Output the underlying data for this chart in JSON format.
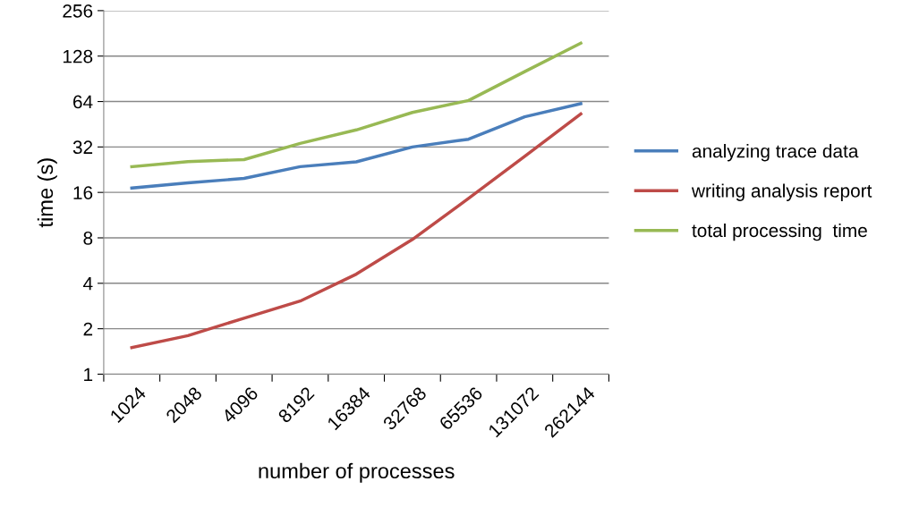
{
  "chart_data": {
    "type": "line",
    "xlabel": "number of processes",
    "ylabel": "time (s)",
    "categories": [
      "1024",
      "2048",
      "4096",
      "8192",
      "16384",
      "32768",
      "65536",
      "131072",
      "262144"
    ],
    "series": [
      {
        "name": "analyzing trace data",
        "color": "#4a7ebb",
        "values": [
          17.1,
          18.5,
          19.8,
          23.7,
          25.5,
          32,
          36,
          50.7,
          62
        ]
      },
      {
        "name": "writing analysis report",
        "color": "#be4b48",
        "values": [
          1.5,
          1.8,
          2.35,
          3.05,
          4.6,
          7.8,
          14.6,
          27.7,
          53
        ]
      },
      {
        "name": "total processing  time",
        "color": "#98b954",
        "values": [
          23.7,
          25.6,
          26.4,
          33.8,
          41.5,
          54.2,
          65,
          101,
          156
        ]
      }
    ],
    "log": "y",
    "ylim": [
      1,
      256
    ],
    "yticks": [
      1,
      2,
      4,
      8,
      16,
      32,
      64,
      128,
      256
    ],
    "grid": "y",
    "legend": "right",
    "marker": "none",
    "line_style": "solid"
  }
}
